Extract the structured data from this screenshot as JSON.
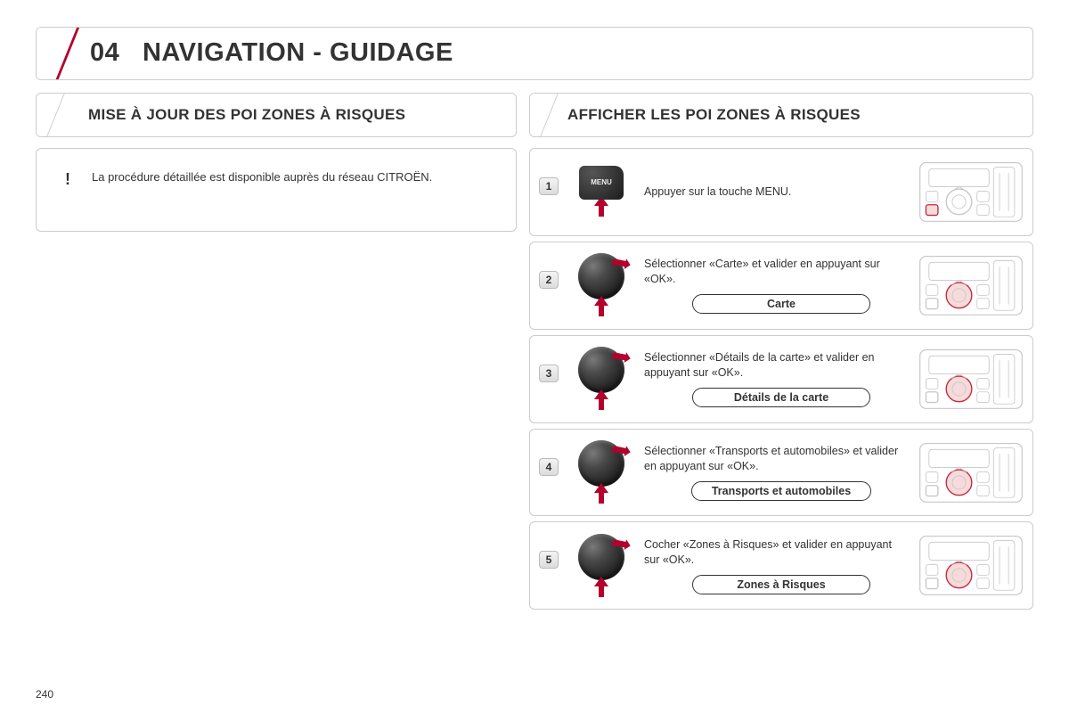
{
  "colors": {
    "accent": "#b4002d",
    "border": "#cccccc",
    "text": "#333333",
    "panelStroke": "#c7c7c7",
    "panelHighlight": "#c62840",
    "background": "#ffffff"
  },
  "page": {
    "number": "240"
  },
  "header": {
    "chapter": "04",
    "title": "NAVIGATION - GUIDAGE"
  },
  "left": {
    "heading": "MISE À JOUR DES POI ZONES À RISQUES",
    "callout": {
      "icon": "!",
      "text": "La procédure détaillée est disponible auprès du réseau CITROËN."
    }
  },
  "right": {
    "heading": "AFFICHER LES POI ZONES À RISQUES",
    "steps": [
      {
        "num": "1",
        "visual": "menu",
        "menuLabel": "MENU",
        "text": "Appuyer sur la touche MENU.",
        "pill": null,
        "highlight": "menu-button"
      },
      {
        "num": "2",
        "visual": "knob",
        "text": "Sélectionner «Carte» et valider en appuyant sur «OK».",
        "pill": "Carte",
        "highlight": "dial"
      },
      {
        "num": "3",
        "visual": "knob",
        "text": "Sélectionner «Détails de la carte» et valider en appuyant sur «OK».",
        "pill": "Détails de la carte",
        "highlight": "dial"
      },
      {
        "num": "4",
        "visual": "knob",
        "text": "Sélectionner «Transports et automobiles» et valider en appuyant sur «OK».",
        "pill": "Transports et automobiles",
        "highlight": "dial"
      },
      {
        "num": "5",
        "visual": "knob",
        "text": "Cocher «Zones à Risques» et valider en appuyant sur «OK».",
        "pill": "Zones à Risques",
        "highlight": "dial"
      }
    ]
  }
}
